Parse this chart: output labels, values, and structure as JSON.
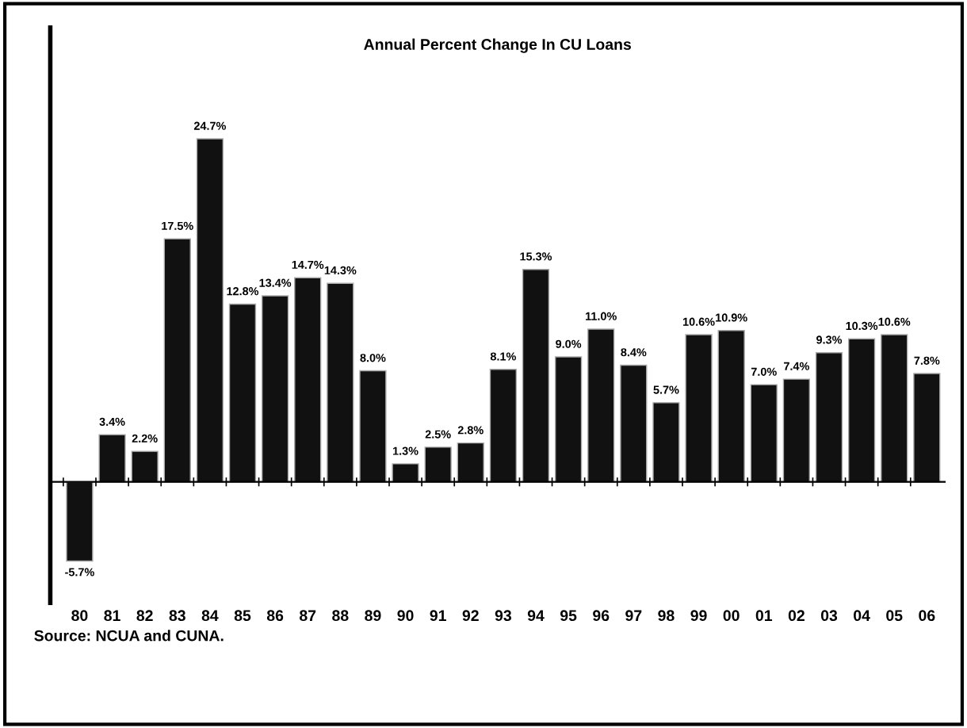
{
  "chart_data": {
    "type": "bar",
    "title": "Annual Percent Change In CU Loans",
    "categories": [
      "80",
      "81",
      "82",
      "83",
      "84",
      "85",
      "86",
      "87",
      "88",
      "89",
      "90",
      "91",
      "92",
      "93",
      "94",
      "95",
      "96",
      "97",
      "98",
      "99",
      "00",
      "01",
      "02",
      "03",
      "04",
      "05",
      "06"
    ],
    "values": [
      -5.7,
      3.4,
      2.2,
      17.5,
      24.7,
      12.8,
      13.4,
      14.7,
      14.3,
      8.0,
      1.3,
      2.5,
      2.8,
      8.1,
      15.3,
      9.0,
      11.0,
      8.4,
      5.7,
      10.6,
      10.9,
      7.0,
      7.4,
      9.3,
      10.3,
      10.6,
      7.8
    ],
    "value_labels": [
      "-5.7%",
      "3.4%",
      "2.2%",
      "17.5%",
      "24.7%",
      "12.8%",
      "13.4%",
      "14.7%",
      "14.3%",
      "8.0%",
      "1.3%",
      "2.5%",
      "2.8%",
      "8.1%",
      "15.3%",
      "9.0%",
      "11.0%",
      "8.4%",
      "5.7%",
      "10.6%",
      "10.9%",
      "7.0%",
      "7.4%",
      "9.3%",
      "10.3%",
      "10.6%",
      "7.8%"
    ],
    "color": "#111111",
    "ylim": [
      -8.7,
      32.7
    ],
    "tick_labels": "x",
    "grid": false,
    "legend": false,
    "annotations": [
      "Source: NCUA and CUNA."
    ]
  }
}
